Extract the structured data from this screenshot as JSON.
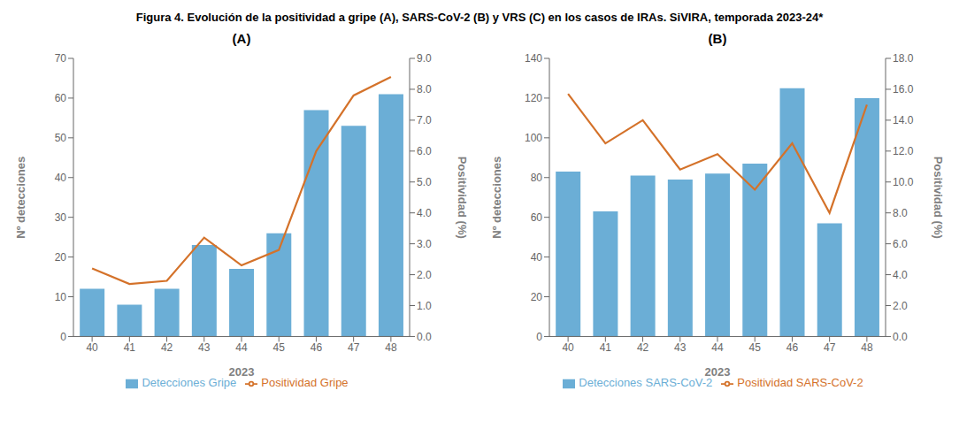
{
  "title": "Figura 4. Evolución de la positividad a gripe (A), SARS-CoV-2 (B) y VRS (C) en los casos de IRAs. SiVIRA, temporada 2023-24*",
  "chart_data": [
    {
      "type": "bar",
      "title": "(A)",
      "categories": [
        "40",
        "41",
        "42",
        "43",
        "44",
        "45",
        "46",
        "47",
        "48"
      ],
      "xlabel": "2023",
      "ylabel": "Nº detecciones",
      "y2label": "Positividad (%)",
      "series": [
        {
          "name": "Detecciones Gripe",
          "type": "bar",
          "color": "#6BAED6",
          "values": [
            12,
            8,
            12,
            23,
            17,
            26,
            57,
            53,
            61
          ]
        },
        {
          "name": "Positividad Gripe",
          "type": "line",
          "color": "#D4722A",
          "axis": "y2",
          "values": [
            2.2,
            1.7,
            1.8,
            3.2,
            2.3,
            2.8,
            6.0,
            7.8,
            8.4
          ]
        }
      ],
      "ylim": [
        0,
        70
      ],
      "yticks": [
        0,
        10,
        20,
        30,
        40,
        50,
        60,
        70
      ],
      "y2lim": [
        0,
        9.0
      ],
      "y2ticks": [
        {
          "value": 0,
          "label": "0.0"
        },
        {
          "value": 1,
          "label": "1.0"
        },
        {
          "value": 2,
          "label": "2.0"
        },
        {
          "value": 3,
          "label": "3.0"
        },
        {
          "value": 4,
          "label": "4.0"
        },
        {
          "value": 5,
          "label": "5.0"
        },
        {
          "value": 6,
          "label": "6.0"
        },
        {
          "value": 7,
          "label": "7.0"
        },
        {
          "value": 8,
          "label": "8.0"
        },
        {
          "value": 9,
          "label": "9.0"
        }
      ],
      "grid": false,
      "legend": "bottom"
    },
    {
      "type": "bar",
      "title": "(B)",
      "categories": [
        "40",
        "41",
        "42",
        "43",
        "44",
        "45",
        "46",
        "47",
        "48"
      ],
      "xlabel": "2023",
      "ylabel": "Nº detecciones",
      "y2label": "Positividad (%)",
      "series": [
        {
          "name": "Detecciones SARS-CoV-2",
          "type": "bar",
          "color": "#6BAED6",
          "values": [
            83,
            63,
            81,
            79,
            82,
            87,
            125,
            57,
            120
          ]
        },
        {
          "name": "Positividad SARS-CoV-2",
          "type": "line",
          "color": "#D4722A",
          "axis": "y2",
          "values": [
            15.7,
            12.5,
            14.0,
            10.8,
            11.8,
            9.5,
            12.5,
            8.0,
            15.0
          ]
        }
      ],
      "ylim": [
        0,
        140
      ],
      "yticks": [
        0,
        20,
        40,
        60,
        80,
        100,
        120,
        140
      ],
      "y2lim": [
        0,
        18.0
      ],
      "y2ticks": [
        {
          "value": 0,
          "label": "0.0"
        },
        {
          "value": 2,
          "label": "2.0"
        },
        {
          "value": 4,
          "label": "4.0"
        },
        {
          "value": 6,
          "label": "6.0"
        },
        {
          "value": 8,
          "label": "8.0"
        },
        {
          "value": 10,
          "label": "10.0"
        },
        {
          "value": 12,
          "label": "12.0"
        },
        {
          "value": 14,
          "label": "14.0"
        },
        {
          "value": 16,
          "label": "16.0"
        },
        {
          "value": 18,
          "label": "18.0"
        }
      ],
      "grid": false,
      "legend": "bottom"
    }
  ]
}
